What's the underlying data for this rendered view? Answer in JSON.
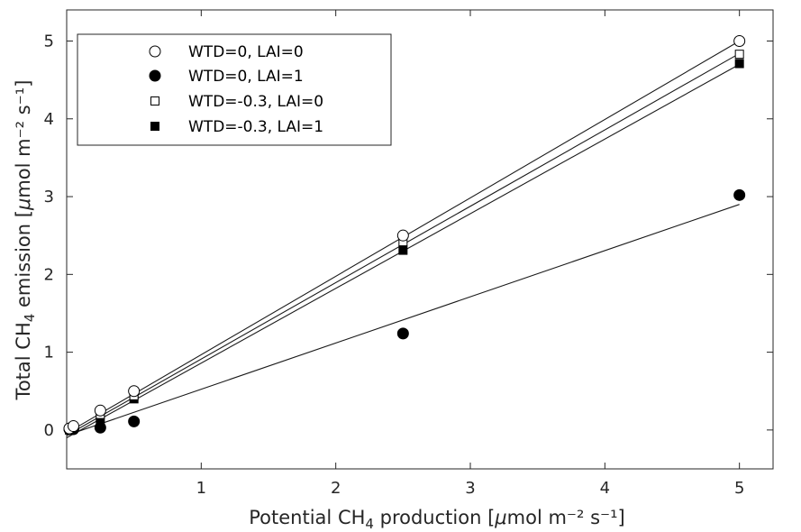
{
  "chart_data": {
    "type": "scatter",
    "xlabel": {
      "pre": "Potential CH",
      "sub": "4",
      "post": " production [",
      "mu": "μ",
      "unit": "mol m⁻² s⁻¹]"
    },
    "ylabel": {
      "pre": "Total CH",
      "sub": "4",
      "post": " emission [",
      "mu": "μ",
      "unit": "mol m⁻² s⁻¹]"
    },
    "xlim": [
      0,
      5.25
    ],
    "ylim": [
      -0.5,
      5.4
    ],
    "xticks": [
      1,
      2,
      3,
      4,
      5
    ],
    "yticks": [
      0,
      1,
      2,
      3,
      4,
      5
    ],
    "legend_position": "top-left",
    "series": [
      {
        "name": "WTD=0, LAI=0",
        "marker": "open-circle",
        "x": [
          0.02,
          0.05,
          0.25,
          0.5,
          2.5,
          5
        ],
        "y": [
          0.02,
          0.05,
          0.25,
          0.5,
          2.5,
          5.0
        ],
        "fit": [
          [
            0,
            -0.04
          ],
          [
            5,
            5.0
          ]
        ]
      },
      {
        "name": "WTD=0, LAI=1",
        "marker": "filled-circle",
        "x": [
          0.02,
          0.05,
          0.25,
          0.5,
          2.5,
          5
        ],
        "y": [
          0.01,
          0.01,
          0.03,
          0.11,
          1.24,
          3.02
        ],
        "fit": [
          [
            0,
            -0.07
          ],
          [
            5,
            2.9
          ]
        ]
      },
      {
        "name": "WTD=-0.3, LAI=0",
        "marker": "open-square",
        "x": [
          0.02,
          0.05,
          0.25,
          0.5,
          2.5,
          5
        ],
        "y": [
          0.01,
          0.03,
          0.2,
          0.44,
          2.42,
          4.83
        ],
        "fit": [
          [
            0,
            -0.07
          ],
          [
            5,
            4.84
          ]
        ]
      },
      {
        "name": "WTD=-0.3, LAI=1",
        "marker": "filled-square",
        "x": [
          0.02,
          0.05,
          0.25,
          0.5,
          2.5,
          5
        ],
        "y": [
          0.0,
          0.02,
          0.14,
          0.4,
          2.31,
          4.71
        ],
        "fit": [
          [
            0,
            -0.1
          ],
          [
            5,
            4.7
          ]
        ]
      }
    ]
  }
}
